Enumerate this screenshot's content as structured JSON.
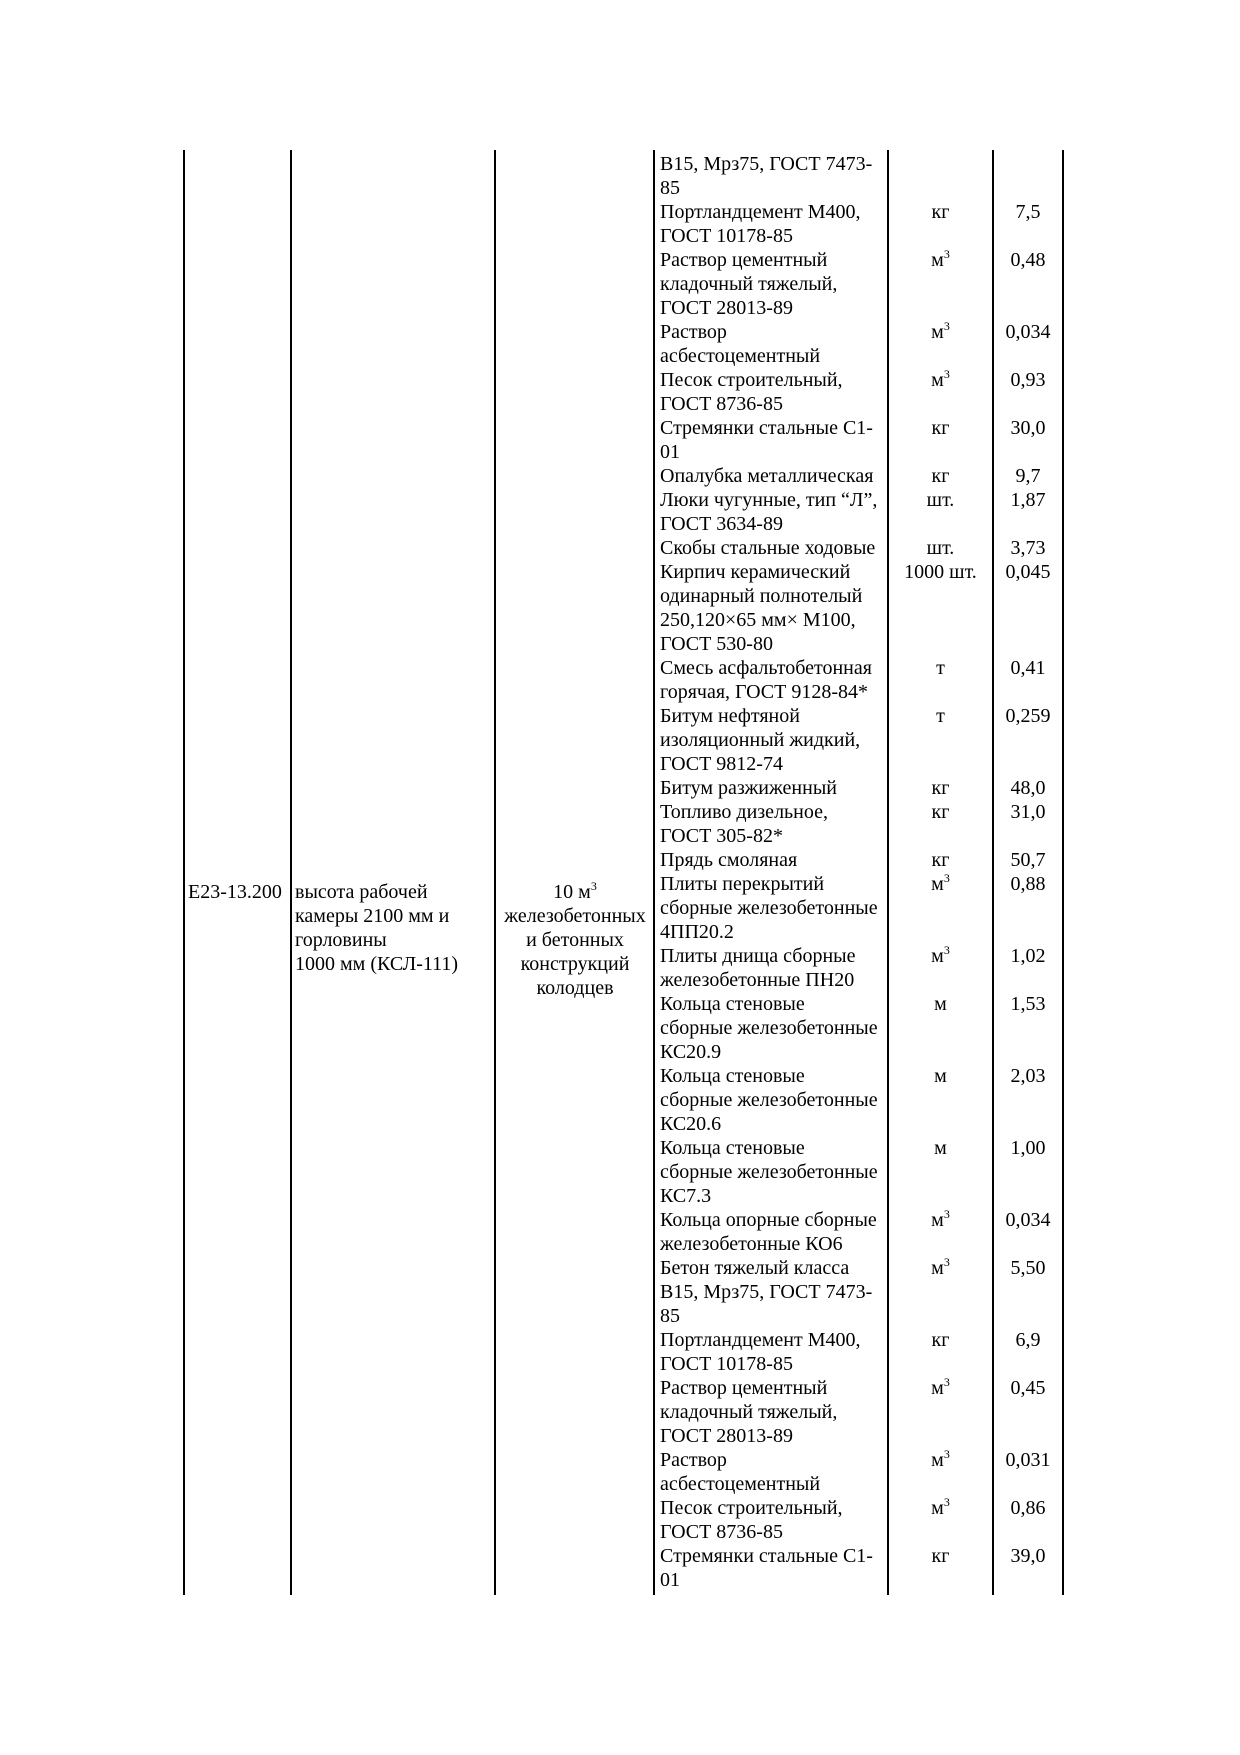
{
  "item": {
    "code": "Е23-13.200",
    "description": "высота рабочей\nкамеры 2100 мм и\nгорловины\n1000 мм (КСЛ-111)",
    "unit_main": "10 м",
    "unit_sup": "3",
    "unit_rest": "железобетонных\nи бетонных\nконструкций\nколодцев"
  },
  "materials": [
    {
      "name": "В15, Мрз75, ГОСТ 7473-\n85",
      "unit": "",
      "sup": "",
      "qty": ""
    },
    {
      "name": "Портландцемент М400,\nГОСТ 10178-85",
      "unit": "кг",
      "sup": "",
      "qty": "7,5"
    },
    {
      "name": "Раствор цементный\nкладочный тяжелый,\nГОСТ 28013-89",
      "unit": "м",
      "sup": "3",
      "qty": "0,48"
    },
    {
      "name": "Раствор\nасбестоцементный",
      "unit": "м",
      "sup": "3",
      "qty": "0,034"
    },
    {
      "name": "Песок строительный,\nГОСТ 8736-85",
      "unit": "м",
      "sup": "3",
      "qty": "0,93"
    },
    {
      "name": "Стремянки стальные С1-\n01",
      "unit": "кг",
      "sup": "",
      "qty": "30,0"
    },
    {
      "name": "Опалубка металлическая",
      "unit": "кг",
      "sup": "",
      "qty": "9,7"
    },
    {
      "name": "Люки чугунные, тип “Л”,\nГОСТ 3634-89",
      "unit": "шт.",
      "sup": "",
      "qty": "1,87"
    },
    {
      "name": "Скобы стальные ходовые",
      "unit": "шт.",
      "sup": "",
      "qty": "3,73"
    },
    {
      "name": "Кирпич керамический\nодинарный полнотелый\n250,120×65 мм× М100,\nГОСТ 530-80",
      "unit": "1000 шт.",
      "sup": "",
      "qty": "0,045"
    },
    {
      "name": "Смесь асфальтобетонная\nгорячая, ГОСТ 9128-84*",
      "unit": "т",
      "sup": "",
      "qty": "0,41"
    },
    {
      "name": "Битум нефтяной\nизоляционный жидкий,\nГОСТ 9812-74",
      "unit": "т",
      "sup": "",
      "qty": "0,259"
    },
    {
      "name": "Битум разжиженный",
      "unit": "кг",
      "sup": "",
      "qty": "48,0"
    },
    {
      "name": "Топливо дизельное,\nГОСТ 305-82*",
      "unit": "кг",
      "sup": "",
      "qty": "31,0"
    },
    {
      "name": "Прядь смоляная",
      "unit": "кг",
      "sup": "",
      "qty": "50,7"
    },
    {
      "name": "Плиты перекрытий\nсборные железобетонные\n4ПП20.2",
      "unit": "м",
      "sup": "3",
      "qty": "0,88"
    },
    {
      "name": "Плиты днища сборные\nжелезобетонные ПН20",
      "unit": "м",
      "sup": "3",
      "qty": "1,02"
    },
    {
      "name": "Кольца стеновые\nсборные железобетонные\nКС20.9",
      "unit": "м",
      "sup": "",
      "qty": "1,53"
    },
    {
      "name": "Кольца стеновые\nсборные железобетонные\nКС20.6",
      "unit": "м",
      "sup": "",
      "qty": "2,03"
    },
    {
      "name": "Кольца стеновые\nсборные железобетонные\nКС7.3",
      "unit": "м",
      "sup": "",
      "qty": "1,00"
    },
    {
      "name": "Кольца опорные сборные\nжелезобетонные КО6",
      "unit": "м",
      "sup": "3",
      "qty": "0,034"
    },
    {
      "name": "Бетон тяжелый класса\nВ15, Мрз75, ГОСТ 7473-\n85",
      "unit": "м",
      "sup": "3",
      "qty": "5,50"
    },
    {
      "name": "Портландцемент М400,\nГОСТ 10178-85",
      "unit": "кг",
      "sup": "",
      "qty": "6,9"
    },
    {
      "name": "Раствор цементный\nкладочный тяжелый,\nГОСТ 28013-89",
      "unit": "м",
      "sup": "3",
      "qty": "0,45"
    },
    {
      "name": "Раствор\nасбестоцементный",
      "unit": "м",
      "sup": "3",
      "qty": "0,031"
    },
    {
      "name": "Песок строительный,\nГОСТ 8736-85",
      "unit": "м",
      "sup": "3",
      "qty": "0,86"
    },
    {
      "name": "Стремянки стальные С1-\n01",
      "unit": "кг",
      "sup": "",
      "qty": "39,0"
    }
  ]
}
